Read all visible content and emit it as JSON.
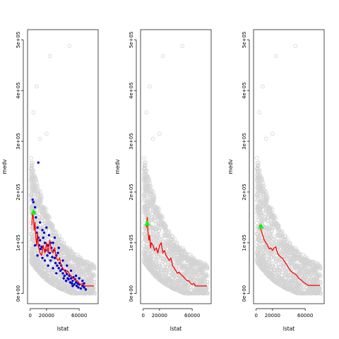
{
  "chart_data": [
    {
      "type": "scatter",
      "xlabel": "lstat",
      "ylabel": "medv",
      "xlim": [
        0,
        80000
      ],
      "ylim": [
        0,
        500000
      ],
      "x_ticks": [
        0,
        20000,
        60000
      ],
      "x_tick_labels": [
        "0",
        "20000",
        "60000"
      ],
      "y_ticks": [
        0,
        100000,
        200000,
        300000,
        400000,
        500000
      ],
      "y_tick_labels": [
        "0e+00",
        "1e+05",
        "2e+05",
        "3e+05",
        "4e+05",
        "5e+05"
      ],
      "background_color": "#d3d3d3",
      "outliers": [
        [
          4000,
          357000
        ],
        [
          8000,
          408000
        ],
        [
          24000,
          468000
        ],
        [
          20000,
          315000
        ],
        [
          48000,
          488000
        ],
        [
          12000,
          305000
        ],
        [
          70000,
          48000
        ],
        [
          74000,
          30000
        ]
      ],
      "fit_color": "#ff0000",
      "fit_line": [
        [
          2000,
          135000
        ],
        [
          3000,
          160000
        ],
        [
          4000,
          150000
        ],
        [
          5000,
          125000
        ],
        [
          6000,
          140000
        ],
        [
          7000,
          110000
        ],
        [
          8000,
          95000
        ],
        [
          9000,
          120000
        ],
        [
          10000,
          95000
        ],
        [
          12000,
          80000
        ],
        [
          14000,
          75000
        ],
        [
          16000,
          95000
        ],
        [
          18000,
          80000
        ],
        [
          20000,
          100000
        ],
        [
          22000,
          80000
        ],
        [
          24000,
          105000
        ],
        [
          26000,
          85000
        ],
        [
          28000,
          80000
        ],
        [
          30000,
          90000
        ],
        [
          32000,
          70000
        ],
        [
          34000,
          65000
        ],
        [
          36000,
          70000
        ],
        [
          38000,
          55000
        ],
        [
          40000,
          50000
        ],
        [
          42000,
          45000
        ],
        [
          44000,
          40000
        ],
        [
          46000,
          45000
        ],
        [
          48000,
          38000
        ],
        [
          50000,
          35000
        ],
        [
          52000,
          30000
        ],
        [
          54000,
          30000
        ],
        [
          56000,
          25000
        ],
        [
          58000,
          25000
        ],
        [
          60000,
          20000
        ],
        [
          62000,
          18000
        ],
        [
          64000,
          20000
        ],
        [
          66000,
          15000
        ],
        [
          70000,
          15000
        ],
        [
          78000,
          15000
        ]
      ],
      "point_color": "#0000cd",
      "points": [
        [
          3000,
          185000
        ],
        [
          4000,
          180000
        ],
        [
          5000,
          160000
        ],
        [
          6000,
          170000
        ],
        [
          7000,
          150000
        ],
        [
          8000,
          120000
        ],
        [
          9000,
          130000
        ],
        [
          10000,
          110000
        ],
        [
          11000,
          95000
        ],
        [
          12000,
          105000
        ],
        [
          13000,
          88000
        ],
        [
          14000,
          92000
        ],
        [
          15000,
          70000
        ],
        [
          16000,
          110000
        ],
        [
          17000,
          120000
        ],
        [
          18000,
          100000
        ],
        [
          19000,
          85000
        ],
        [
          20000,
          130000
        ],
        [
          21000,
          75000
        ],
        [
          22000,
          95000
        ],
        [
          23000,
          115000
        ],
        [
          24000,
          80000
        ],
        [
          25000,
          65000
        ],
        [
          26000,
          90000
        ],
        [
          27000,
          72000
        ],
        [
          28000,
          100000
        ],
        [
          29000,
          85000
        ],
        [
          30000,
          70000
        ],
        [
          31000,
          60000
        ],
        [
          32000,
          75000
        ],
        [
          33000,
          55000
        ],
        [
          34000,
          80000
        ],
        [
          35000,
          50000
        ],
        [
          36000,
          60000
        ],
        [
          37000,
          45000
        ],
        [
          38000,
          55000
        ],
        [
          39000,
          48000
        ],
        [
          40000,
          40000
        ],
        [
          41000,
          30000
        ],
        [
          42000,
          35000
        ],
        [
          43000,
          45000
        ],
        [
          44000,
          25000
        ],
        [
          45000,
          38000
        ],
        [
          46000,
          30000
        ],
        [
          47000,
          28000
        ],
        [
          48000,
          35000
        ],
        [
          49000,
          22000
        ],
        [
          50000,
          30000
        ],
        [
          51000,
          20000
        ],
        [
          52000,
          25000
        ],
        [
          53000,
          32000
        ],
        [
          54000,
          18000
        ],
        [
          55000,
          28000
        ],
        [
          56000,
          22000
        ],
        [
          57000,
          15000
        ],
        [
          58000,
          20000
        ],
        [
          59000,
          12000
        ],
        [
          60000,
          18000
        ],
        [
          62000,
          10000
        ],
        [
          64000,
          15000
        ],
        [
          66000,
          12000
        ],
        [
          68000,
          8000
        ],
        [
          10000,
          258000
        ],
        [
          12000,
          140000
        ],
        [
          15000,
          125000
        ],
        [
          18000,
          65000
        ],
        [
          22000,
          55000
        ],
        [
          30000,
          110000
        ],
        [
          6000,
          95000
        ],
        [
          9000,
          75000
        ],
        [
          40000,
          65000
        ],
        [
          45000,
          55000
        ],
        [
          50000,
          45000
        ],
        [
          35000,
          90000
        ],
        [
          25000,
          100000
        ],
        [
          28000,
          50000
        ],
        [
          32000,
          40000
        ],
        [
          52000,
          15000
        ],
        [
          56000,
          35000
        ],
        [
          60000,
          30000
        ],
        [
          64000,
          25000
        ],
        [
          66000,
          20000
        ]
      ],
      "marker_color": "#00ff00",
      "marker": [
        4000,
        160000
      ]
    },
    {
      "type": "scatter",
      "xlabel": "lstat",
      "ylabel": "medv",
      "xlim": [
        0,
        80000
      ],
      "ylim": [
        0,
        500000
      ],
      "x_ticks": [
        0,
        20000,
        60000
      ],
      "x_tick_labels": [
        "0",
        "20000",
        "60000"
      ],
      "y_ticks": [
        0,
        100000,
        200000,
        300000,
        400000,
        500000
      ],
      "y_tick_labels": [
        "0e+00",
        "1e+05",
        "2e+05",
        "3e+05",
        "4e+05",
        "5e+05"
      ],
      "background_color": "#d3d3d3",
      "outliers": [
        [
          4000,
          357000
        ],
        [
          8000,
          408000
        ],
        [
          24000,
          468000
        ],
        [
          20000,
          315000
        ],
        [
          48000,
          488000
        ],
        [
          12000,
          305000
        ],
        [
          70000,
          48000
        ],
        [
          74000,
          30000
        ]
      ],
      "fit_color": "#ff0000",
      "fit_line": [
        [
          4000,
          130000
        ],
        [
          5000,
          150000
        ],
        [
          6000,
          120000
        ],
        [
          7000,
          105000
        ],
        [
          8000,
          115000
        ],
        [
          9000,
          90000
        ],
        [
          10000,
          100000
        ],
        [
          12000,
          95000
        ],
        [
          14000,
          85000
        ],
        [
          16000,
          90000
        ],
        [
          18000,
          80000
        ],
        [
          20000,
          95000
        ],
        [
          22000,
          100000
        ],
        [
          24000,
          80000
        ],
        [
          26000,
          85000
        ],
        [
          28000,
          75000
        ],
        [
          30000,
          70000
        ],
        [
          32000,
          65000
        ],
        [
          34000,
          70000
        ],
        [
          36000,
          55000
        ],
        [
          38000,
          50000
        ],
        [
          40000,
          45000
        ],
        [
          42000,
          40000
        ],
        [
          44000,
          42000
        ],
        [
          46000,
          38000
        ],
        [
          48000,
          35000
        ],
        [
          50000,
          32000
        ],
        [
          52000,
          28000
        ],
        [
          54000,
          25000
        ],
        [
          56000,
          25000
        ],
        [
          58000,
          20000
        ],
        [
          60000,
          18000
        ],
        [
          62000,
          20000
        ],
        [
          64000,
          15000
        ],
        [
          78000,
          15000
        ]
      ],
      "marker_color": "#00ff00",
      "marker": [
        5000,
        138000
      ]
    },
    {
      "type": "scatter",
      "xlabel": "lstat",
      "ylabel": "medv",
      "xlim": [
        0,
        80000
      ],
      "ylim": [
        0,
        500000
      ],
      "x_ticks": [
        0,
        20000,
        60000
      ],
      "x_tick_labels": [
        "0",
        "20000",
        "60000"
      ],
      "y_ticks": [
        0,
        100000,
        200000,
        300000,
        400000,
        500000
      ],
      "y_tick_labels": [
        "0e+00",
        "1e+05",
        "2e+05",
        "3e+05",
        "4e+05",
        "5e+05"
      ],
      "background_color": "#d3d3d3",
      "outliers": [
        [
          4000,
          357000
        ],
        [
          8000,
          408000
        ],
        [
          24000,
          468000
        ],
        [
          20000,
          315000
        ],
        [
          48000,
          488000
        ],
        [
          12000,
          305000
        ],
        [
          70000,
          48000
        ],
        [
          74000,
          30000
        ]
      ],
      "fit_color": "#ff0000",
      "fit_line": [
        [
          4000,
          135000
        ],
        [
          5000,
          130000
        ],
        [
          6000,
          125000
        ],
        [
          8000,
          115000
        ],
        [
          10000,
          105000
        ],
        [
          12000,
          100000
        ],
        [
          14000,
          95000
        ],
        [
          16000,
          88000
        ],
        [
          18000,
          90000
        ],
        [
          20000,
          85000
        ],
        [
          22000,
          90000
        ],
        [
          24000,
          92000
        ],
        [
          26000,
          80000
        ],
        [
          28000,
          75000
        ],
        [
          30000,
          72000
        ],
        [
          32000,
          70000
        ],
        [
          34000,
          65000
        ],
        [
          36000,
          60000
        ],
        [
          38000,
          55000
        ],
        [
          40000,
          50000
        ],
        [
          42000,
          45000
        ],
        [
          44000,
          42000
        ],
        [
          46000,
          40000
        ],
        [
          48000,
          38000
        ],
        [
          50000,
          35000
        ],
        [
          52000,
          30000
        ],
        [
          54000,
          28000
        ],
        [
          56000,
          25000
        ],
        [
          58000,
          22000
        ],
        [
          60000,
          20000
        ],
        [
          62000,
          18000
        ],
        [
          64000,
          16000
        ],
        [
          78000,
          16000
        ]
      ],
      "marker_color": "#00ff00",
      "marker": [
        6000,
        132000
      ]
    }
  ]
}
